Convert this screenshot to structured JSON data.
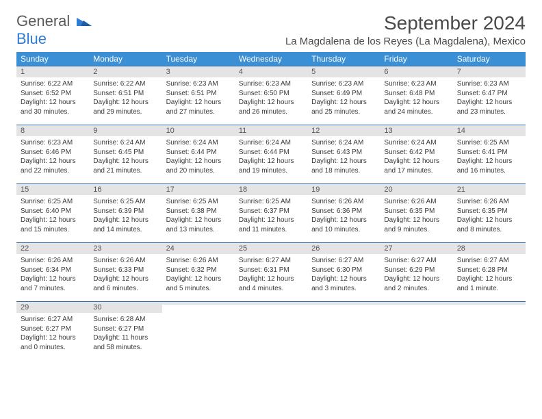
{
  "logo": {
    "word1": "General",
    "word2": "Blue"
  },
  "title": "September 2024",
  "location": "La Magdalena de los Reyes (La Magdalena), Mexico",
  "colors": {
    "header_bg": "#3b8fd4",
    "header_fg": "#ffffff",
    "row_border": "#2f6aa8",
    "daynum_bg": "#e4e4e4",
    "text": "#3a3a3a",
    "logo_gray": "#5a5a5a",
    "logo_blue": "#2e7cd6"
  },
  "weekdays": [
    "Sunday",
    "Monday",
    "Tuesday",
    "Wednesday",
    "Thursday",
    "Friday",
    "Saturday"
  ],
  "weeks": [
    [
      {
        "n": "1",
        "sr": "Sunrise: 6:22 AM",
        "ss": "Sunset: 6:52 PM",
        "dl1": "Daylight: 12 hours",
        "dl2": "and 30 minutes."
      },
      {
        "n": "2",
        "sr": "Sunrise: 6:22 AM",
        "ss": "Sunset: 6:51 PM",
        "dl1": "Daylight: 12 hours",
        "dl2": "and 29 minutes."
      },
      {
        "n": "3",
        "sr": "Sunrise: 6:23 AM",
        "ss": "Sunset: 6:51 PM",
        "dl1": "Daylight: 12 hours",
        "dl2": "and 27 minutes."
      },
      {
        "n": "4",
        "sr": "Sunrise: 6:23 AM",
        "ss": "Sunset: 6:50 PM",
        "dl1": "Daylight: 12 hours",
        "dl2": "and 26 minutes."
      },
      {
        "n": "5",
        "sr": "Sunrise: 6:23 AM",
        "ss": "Sunset: 6:49 PM",
        "dl1": "Daylight: 12 hours",
        "dl2": "and 25 minutes."
      },
      {
        "n": "6",
        "sr": "Sunrise: 6:23 AM",
        "ss": "Sunset: 6:48 PM",
        "dl1": "Daylight: 12 hours",
        "dl2": "and 24 minutes."
      },
      {
        "n": "7",
        "sr": "Sunrise: 6:23 AM",
        "ss": "Sunset: 6:47 PM",
        "dl1": "Daylight: 12 hours",
        "dl2": "and 23 minutes."
      }
    ],
    [
      {
        "n": "8",
        "sr": "Sunrise: 6:23 AM",
        "ss": "Sunset: 6:46 PM",
        "dl1": "Daylight: 12 hours",
        "dl2": "and 22 minutes."
      },
      {
        "n": "9",
        "sr": "Sunrise: 6:24 AM",
        "ss": "Sunset: 6:45 PM",
        "dl1": "Daylight: 12 hours",
        "dl2": "and 21 minutes."
      },
      {
        "n": "10",
        "sr": "Sunrise: 6:24 AM",
        "ss": "Sunset: 6:44 PM",
        "dl1": "Daylight: 12 hours",
        "dl2": "and 20 minutes."
      },
      {
        "n": "11",
        "sr": "Sunrise: 6:24 AM",
        "ss": "Sunset: 6:44 PM",
        "dl1": "Daylight: 12 hours",
        "dl2": "and 19 minutes."
      },
      {
        "n": "12",
        "sr": "Sunrise: 6:24 AM",
        "ss": "Sunset: 6:43 PM",
        "dl1": "Daylight: 12 hours",
        "dl2": "and 18 minutes."
      },
      {
        "n": "13",
        "sr": "Sunrise: 6:24 AM",
        "ss": "Sunset: 6:42 PM",
        "dl1": "Daylight: 12 hours",
        "dl2": "and 17 minutes."
      },
      {
        "n": "14",
        "sr": "Sunrise: 6:25 AM",
        "ss": "Sunset: 6:41 PM",
        "dl1": "Daylight: 12 hours",
        "dl2": "and 16 minutes."
      }
    ],
    [
      {
        "n": "15",
        "sr": "Sunrise: 6:25 AM",
        "ss": "Sunset: 6:40 PM",
        "dl1": "Daylight: 12 hours",
        "dl2": "and 15 minutes."
      },
      {
        "n": "16",
        "sr": "Sunrise: 6:25 AM",
        "ss": "Sunset: 6:39 PM",
        "dl1": "Daylight: 12 hours",
        "dl2": "and 14 minutes."
      },
      {
        "n": "17",
        "sr": "Sunrise: 6:25 AM",
        "ss": "Sunset: 6:38 PM",
        "dl1": "Daylight: 12 hours",
        "dl2": "and 13 minutes."
      },
      {
        "n": "18",
        "sr": "Sunrise: 6:25 AM",
        "ss": "Sunset: 6:37 PM",
        "dl1": "Daylight: 12 hours",
        "dl2": "and 11 minutes."
      },
      {
        "n": "19",
        "sr": "Sunrise: 6:26 AM",
        "ss": "Sunset: 6:36 PM",
        "dl1": "Daylight: 12 hours",
        "dl2": "and 10 minutes."
      },
      {
        "n": "20",
        "sr": "Sunrise: 6:26 AM",
        "ss": "Sunset: 6:35 PM",
        "dl1": "Daylight: 12 hours",
        "dl2": "and 9 minutes."
      },
      {
        "n": "21",
        "sr": "Sunrise: 6:26 AM",
        "ss": "Sunset: 6:35 PM",
        "dl1": "Daylight: 12 hours",
        "dl2": "and 8 minutes."
      }
    ],
    [
      {
        "n": "22",
        "sr": "Sunrise: 6:26 AM",
        "ss": "Sunset: 6:34 PM",
        "dl1": "Daylight: 12 hours",
        "dl2": "and 7 minutes."
      },
      {
        "n": "23",
        "sr": "Sunrise: 6:26 AM",
        "ss": "Sunset: 6:33 PM",
        "dl1": "Daylight: 12 hours",
        "dl2": "and 6 minutes."
      },
      {
        "n": "24",
        "sr": "Sunrise: 6:26 AM",
        "ss": "Sunset: 6:32 PM",
        "dl1": "Daylight: 12 hours",
        "dl2": "and 5 minutes."
      },
      {
        "n": "25",
        "sr": "Sunrise: 6:27 AM",
        "ss": "Sunset: 6:31 PM",
        "dl1": "Daylight: 12 hours",
        "dl2": "and 4 minutes."
      },
      {
        "n": "26",
        "sr": "Sunrise: 6:27 AM",
        "ss": "Sunset: 6:30 PM",
        "dl1": "Daylight: 12 hours",
        "dl2": "and 3 minutes."
      },
      {
        "n": "27",
        "sr": "Sunrise: 6:27 AM",
        "ss": "Sunset: 6:29 PM",
        "dl1": "Daylight: 12 hours",
        "dl2": "and 2 minutes."
      },
      {
        "n": "28",
        "sr": "Sunrise: 6:27 AM",
        "ss": "Sunset: 6:28 PM",
        "dl1": "Daylight: 12 hours",
        "dl2": "and 1 minute."
      }
    ],
    [
      {
        "n": "29",
        "sr": "Sunrise: 6:27 AM",
        "ss": "Sunset: 6:27 PM",
        "dl1": "Daylight: 12 hours",
        "dl2": "and 0 minutes."
      },
      {
        "n": "30",
        "sr": "Sunrise: 6:28 AM",
        "ss": "Sunset: 6:27 PM",
        "dl1": "Daylight: 11 hours",
        "dl2": "and 58 minutes."
      },
      {
        "n": "",
        "sr": "",
        "ss": "",
        "dl1": "",
        "dl2": ""
      },
      {
        "n": "",
        "sr": "",
        "ss": "",
        "dl1": "",
        "dl2": ""
      },
      {
        "n": "",
        "sr": "",
        "ss": "",
        "dl1": "",
        "dl2": ""
      },
      {
        "n": "",
        "sr": "",
        "ss": "",
        "dl1": "",
        "dl2": ""
      },
      {
        "n": "",
        "sr": "",
        "ss": "",
        "dl1": "",
        "dl2": ""
      }
    ]
  ]
}
